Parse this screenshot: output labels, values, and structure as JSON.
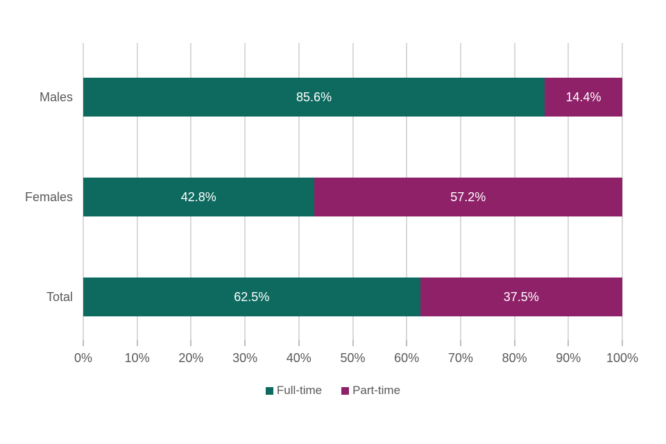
{
  "chart_data": {
    "type": "bar",
    "subtype": "horizontal_stacked_percentage",
    "categories": [
      "Males",
      "Females",
      "Total"
    ],
    "series": [
      {
        "name": "Full-time",
        "color": "#0e6a5f",
        "values": [
          85.6,
          42.8,
          62.5
        ],
        "labels": [
          "85.6%",
          "42.8%",
          "62.5%"
        ]
      },
      {
        "name": "Part-time",
        "color": "#8e2168",
        "values": [
          14.4,
          57.2,
          37.5
        ],
        "labels": [
          "14.4%",
          "57.2%",
          "37.5%"
        ]
      }
    ],
    "x_axis": {
      "min": 0,
      "max": 100,
      "tick_step": 10,
      "ticks": [
        "0%",
        "10%",
        "20%",
        "30%",
        "40%",
        "50%",
        "60%",
        "70%",
        "80%",
        "90%",
        "100%"
      ]
    },
    "grid": "vertical",
    "legend": {
      "position": "bottom-center",
      "items": [
        {
          "label": "Full-time",
          "color": "#0e6a5f"
        },
        {
          "label": "Part-time",
          "color": "#8e2168"
        }
      ]
    },
    "title": "",
    "xlabel": "",
    "ylabel": ""
  },
  "colors": {
    "background": "#ffffff",
    "full_time": "#0e6a5f",
    "part_time": "#8e2168",
    "axis_text": "#595959",
    "gridline": "#d9d9d9",
    "tickmark": "#bdbdbd",
    "bar_value_text": "#ffffff"
  }
}
